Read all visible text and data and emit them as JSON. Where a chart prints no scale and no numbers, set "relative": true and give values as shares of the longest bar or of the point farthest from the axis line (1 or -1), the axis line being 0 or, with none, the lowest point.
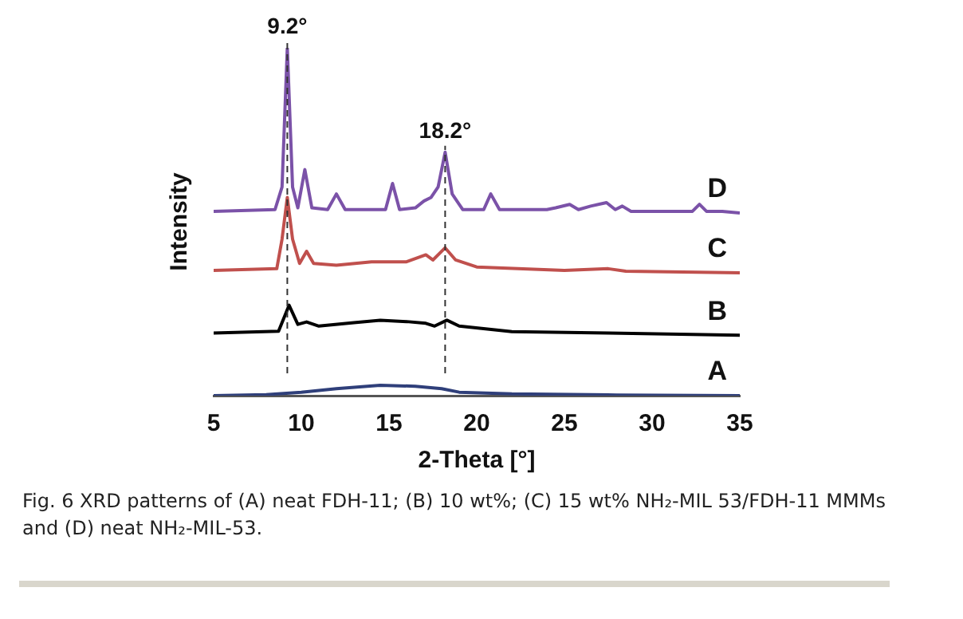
{
  "chart_data": {
    "type": "line",
    "relative": true,
    "xlabel": "2-Theta [°]",
    "ylabel": "Intensity",
    "xlim": [
      5,
      35
    ],
    "xticks": [
      5,
      10,
      15,
      20,
      25,
      30,
      35
    ],
    "grid": false,
    "legend": false,
    "marker": "none",
    "line_style": "solid",
    "series": [
      {
        "name": "D",
        "color": "#7b52a8",
        "x": [
          5,
          8.5,
          8.9,
          9.2,
          9.5,
          9.8,
          10.2,
          10.6,
          11.5,
          12.0,
          12.5,
          14.8,
          15.2,
          15.6,
          16.5,
          17.0,
          17.4,
          17.8,
          18.2,
          18.6,
          19.2,
          20.4,
          20.8,
          21.3,
          24,
          24.5,
          25.3,
          25.8,
          26.5,
          27.4,
          27.9,
          28.3,
          28.8,
          32.3,
          32.7,
          33.1,
          34,
          35
        ],
        "values": [
          0.53,
          0.535,
          0.6,
          1.0,
          0.6,
          0.54,
          0.65,
          0.54,
          0.535,
          0.58,
          0.535,
          0.535,
          0.61,
          0.535,
          0.54,
          0.56,
          0.57,
          0.6,
          0.7,
          0.58,
          0.535,
          0.535,
          0.58,
          0.535,
          0.535,
          0.54,
          0.55,
          0.535,
          0.545,
          0.555,
          0.535,
          0.545,
          0.53,
          0.53,
          0.55,
          0.53,
          0.53,
          0.525
        ]
      },
      {
        "name": "C",
        "color": "#c0504d",
        "x": [
          5,
          8.6,
          8.9,
          9.2,
          9.5,
          9.9,
          10.3,
          10.7,
          12,
          14,
          16,
          17.1,
          17.5,
          18.2,
          18.8,
          20,
          25,
          27.5,
          28.5,
          35
        ],
        "values": [
          0.36,
          0.365,
          0.45,
          0.57,
          0.45,
          0.38,
          0.415,
          0.38,
          0.375,
          0.385,
          0.385,
          0.405,
          0.39,
          0.425,
          0.39,
          0.37,
          0.36,
          0.365,
          0.358,
          0.353
        ]
      },
      {
        "name": "B",
        "color": "#000000",
        "x": [
          5,
          8.7,
          9.3,
          9.8,
          10.3,
          11,
          13,
          14.5,
          16,
          17.1,
          17.6,
          18.3,
          19,
          22,
          27.5,
          35
        ],
        "values": [
          0.18,
          0.185,
          0.26,
          0.205,
          0.212,
          0.2,
          0.21,
          0.217,
          0.213,
          0.208,
          0.2,
          0.217,
          0.2,
          0.184,
          0.18,
          0.174
        ]
      },
      {
        "name": "A",
        "color": "#2f3f7a",
        "x": [
          5,
          8,
          10,
          12,
          14.5,
          16.5,
          18,
          19,
          22,
          28,
          35
        ],
        "values": [
          0,
          0.003,
          0.01,
          0.02,
          0.03,
          0.027,
          0.02,
          0.01,
          0.005,
          0.002,
          0
        ]
      }
    ],
    "ref_lines": [
      {
        "axis": "x",
        "value": 9.2,
        "label": "9.2°",
        "color": "#333333",
        "line_style": "dashed"
      },
      {
        "axis": "x",
        "value": 18.2,
        "label": "18.2°",
        "color": "#333333",
        "line_style": "dashed"
      }
    ],
    "annotations": [
      "Fig. 6 XRD patterns of (A) neat FDH-11; (B) 10 wt%; (C) 15 wt% NH₂-MIL 53/FDH-11 MMMs and (D) neat NH₂-MIL-53."
    ]
  }
}
